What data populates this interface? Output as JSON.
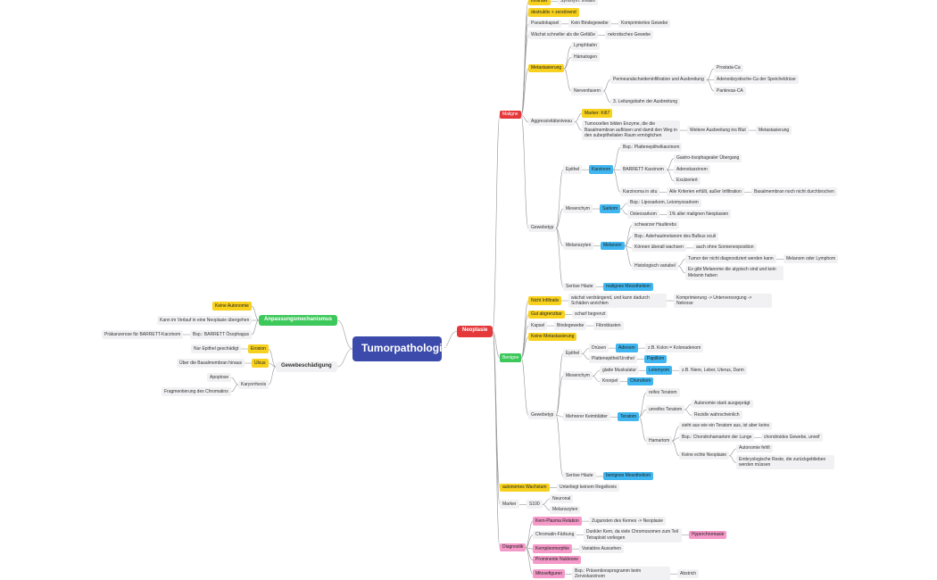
{
  "root": {
    "label": "Tumorpathologie",
    "color": "#3c4bab"
  },
  "left": [
    {
      "label": "Anpassungsmechanismus",
      "color": "#3cc85a",
      "children": [
        {
          "label": "Keine Autonomie",
          "color": "#f7d11e"
        },
        {
          "label": "Kann im Verlauf in eine Neoplasie übergehen"
        },
        {
          "label": "Bsp.: BARRETT Ösophagus",
          "children": [
            {
              "label": "Präkanzerose für BARRETT-Karzinom"
            }
          ]
        }
      ]
    },
    {
      "label": "Gewebeschädigung",
      "children": [
        {
          "label": "Erosion",
          "color": "#f7d11e",
          "children": [
            {
              "label": "Nur Epithel geschädigt"
            }
          ]
        },
        {
          "label": "Ulcus",
          "color": "#f7d11e",
          "children": [
            {
              "label": "Über die Basalmembran hinaus"
            }
          ]
        },
        {
          "label": "Karyorrhexis",
          "children": [
            {
              "label": "Apoptose"
            },
            {
              "label": "Fragmentierung des Chromatins"
            }
          ]
        }
      ]
    }
  ],
  "right": [
    {
      "label": "Neoplasie",
      "color": "#e5383b",
      "children": [
        {
          "label": "Maligne",
          "color": "#e5383b",
          "children": [
            {
              "label": "Infiltrativ",
              "color": "#f7d11e",
              "children": [
                {
                  "label": "Synonym: invasiv"
                }
              ]
            },
            {
              "label": "destruktiv + zerstörend",
              "color": "#f7d11e"
            },
            {
              "label": "Pseudokapsel",
              "children": [
                {
                  "label": "Kein Bindegewebe",
                  "children": [
                    {
                      "label": "Komprimiertes Gewebe"
                    }
                  ]
                }
              ]
            },
            {
              "label": "Wächst schneller als die Gefäße",
              "children": [
                {
                  "label": "nekrotisches Gewebe"
                }
              ]
            },
            {
              "label": "Metastasierung",
              "color": "#f7d11e",
              "children": [
                {
                  "label": "Lymphbahn"
                },
                {
                  "label": "Hämatogen"
                },
                {
                  "label": "Nervenfasern",
                  "children": [
                    {
                      "label": "Perineuralscheideninfiltration und Ausbreitung",
                      "children": [
                        {
                          "label": "Prostata-Ca"
                        },
                        {
                          "label": "Adenoidzystische-Ca der Speicheldrüse"
                        },
                        {
                          "label": "Pankreas-CA"
                        }
                      ]
                    },
                    {
                      "label": "3. Leitungsbahn der Ausbreitung"
                    }
                  ]
                }
              ]
            },
            {
              "label": "Aggressivitätsniveau",
              "children": [
                {
                  "label": "Marker: Ki67",
                  "color": "#f7d11e"
                },
                {
                  "label": "Tumorzellen bilden Enzyme, die die Basalmembran auflösen und damit den Weg in den subepithelialen Raum ermöglichen",
                  "children": [
                    {
                      "label": "Weitere Ausbreitung ins Blut",
                      "children": [
                        {
                          "label": "Metastasierung"
                        }
                      ]
                    }
                  ]
                }
              ]
            },
            {
              "label": "Gewebetyp",
              "children": [
                {
                  "label": "Epithel",
                  "children": [
                    {
                      "label": "Karzinom",
                      "color": "#3fb6ef",
                      "children": [
                        {
                          "label": "Bsp.: Plattenepithelkarzinom"
                        },
                        {
                          "label": "BARRETT-Karzinom",
                          "children": [
                            {
                              "label": "Gastro-ösophagealer Übergang"
                            },
                            {
                              "label": "Adenokarzinom"
                            },
                            {
                              "label": "Exulzeriert"
                            }
                          ]
                        },
                        {
                          "label": "Karzinoma in situ",
                          "children": [
                            {
                              "label": "Alle Kriterien erfüllt, außer Infiltration",
                              "children": [
                                {
                                  "label": "Basalmembran noch nicht durchbrochen"
                                }
                              ]
                            }
                          ]
                        }
                      ]
                    }
                  ]
                },
                {
                  "label": "Mesenchym",
                  "children": [
                    {
                      "label": "Sarkom",
                      "color": "#3fb6ef",
                      "children": [
                        {
                          "label": "Bsp.: Liposarkom, Leiomyosarkom"
                        },
                        {
                          "label": "Osteosarkom",
                          "children": [
                            {
                              "label": "1% aller malignen Neoplasien"
                            }
                          ]
                        }
                      ]
                    }
                  ]
                },
                {
                  "label": "Melanozyten",
                  "children": [
                    {
                      "label": "Melanom",
                      "color": "#3fb6ef",
                      "children": [
                        {
                          "label": "schwarzer Hautkrebs"
                        },
                        {
                          "label": "Bsp.: Aderhautmelanom des Bulbus oculi"
                        },
                        {
                          "label": "Können überall wachsen",
                          "children": [
                            {
                              "label": "auch ohne Sonnenexposition"
                            }
                          ]
                        },
                        {
                          "label": "Histologisch variabel",
                          "children": [
                            {
                              "label": "Tumor der nicht diagnostiziert werden kann",
                              "children": [
                                {
                                  "label": "Melanom oder Lymphom"
                                }
                              ]
                            },
                            {
                              "label": "Es gibt Melanome die atypisch sind und kein Melanin haben"
                            }
                          ]
                        }
                      ]
                    }
                  ]
                },
                {
                  "label": "Seröse Häute",
                  "children": [
                    {
                      "label": "malignes Mesotheliom",
                      "color": "#3fb6ef"
                    }
                  ]
                }
              ]
            }
          ]
        },
        {
          "label": "Benigne",
          "color": "#3cc85a",
          "children": [
            {
              "label": "Nicht Infiltrativ",
              "color": "#f7d11e",
              "children": [
                {
                  "label": "wächst verdrängend, und kann dadurch Schäden anrichten",
                  "children": [
                    {
                      "label": "Komprimierung -> Unterversorgung -> Nekrose"
                    }
                  ]
                }
              ]
            },
            {
              "label": "Gut abgrenzbar",
              "color": "#f7d11e",
              "children": [
                {
                  "label": "scharf begrenzt"
                }
              ]
            },
            {
              "label": "Kapsel",
              "children": [
                {
                  "label": "Bindegewebe",
                  "children": [
                    {
                      "label": "Fibroblasten"
                    }
                  ]
                }
              ]
            },
            {
              "label": "Keine Metastasierung",
              "color": "#f7d11e"
            },
            {
              "label": "Gewebetyp",
              "children": [
                {
                  "label": "Epithel",
                  "children": [
                    {
                      "label": "Drüsen",
                      "children": [
                        {
                          "label": "Adenom",
                          "color": "#3fb6ef",
                          "children": [
                            {
                              "label": "z.B. Kolon = Kolonadenom"
                            }
                          ]
                        }
                      ]
                    },
                    {
                      "label": "Plattenepithel/Urothel",
                      "children": [
                        {
                          "label": "Papillom",
                          "color": "#3fb6ef"
                        }
                      ]
                    }
                  ]
                },
                {
                  "label": "Mesenchym",
                  "children": [
                    {
                      "label": "glatte Muskulatur",
                      "children": [
                        {
                          "label": "Leiomyom",
                          "color": "#3fb6ef",
                          "children": [
                            {
                              "label": "z.B. Niere, Leber, Uterus, Darm"
                            }
                          ]
                        }
                      ]
                    },
                    {
                      "label": "Knorpel",
                      "children": [
                        {
                          "label": "Chondrom",
                          "color": "#3fb6ef"
                        }
                      ]
                    }
                  ]
                },
                {
                  "label": "Mehrerer Keimblätter",
                  "children": [
                    {
                      "label": "Teratom",
                      "color": "#3fb6ef",
                      "children": [
                        {
                          "label": "reifes Teratom"
                        },
                        {
                          "label": "unreifes Teratom",
                          "children": [
                            {
                              "label": "Autonomie stark ausgeprägt"
                            },
                            {
                              "label": "Rezidiv wahrscheinlich"
                            }
                          ]
                        },
                        {
                          "label": "Hamartom",
                          "children": [
                            {
                              "label": "sieht aus wie ein Teratom aus, ist aber keins"
                            },
                            {
                              "label": "Bsp.: Chondrohamartom der Lunge",
                              "children": [
                                {
                                  "label": "chondroides Gewebe, unreif"
                                }
                              ]
                            },
                            {
                              "label": "Keine echte Neoplasie",
                              "children": [
                                {
                                  "label": "Autonomie fehlt"
                                },
                                {
                                  "label": "Embryologische Reste, die zurückgeblieben werden müssen"
                                }
                              ]
                            }
                          ]
                        }
                      ]
                    }
                  ]
                },
                {
                  "label": "Seröse Häute",
                  "children": [
                    {
                      "label": "benignes Mesotheliom",
                      "color": "#3fb6ef"
                    }
                  ]
                }
              ]
            }
          ]
        },
        {
          "label": "autonomes Wachstum",
          "color": "#f7d11e",
          "children": [
            {
              "label": "Unterliegt keinem Regelkreis"
            }
          ]
        },
        {
          "label": "Marker",
          "children": [
            {
              "label": "S100",
              "children": [
                {
                  "label": "Neuronal"
                },
                {
                  "label": "Melanozyten"
                }
              ]
            }
          ]
        },
        {
          "label": "Diagnostik",
          "color": "#f59ac8",
          "children": [
            {
              "label": "Kern-Plasma Relation",
              "color": "#f59ac8",
              "children": [
                {
                  "label": "Zugunsten des Kernes -> Neoplasie"
                }
              ]
            },
            {
              "label": "Chromatin-Färbung",
              "children": [
                {
                  "label": "Dunkler Kern, da viele Chromosomen zum Teil Tetraploid vorliegen",
                  "children": [
                    {
                      "label": "Hyperchromasie",
                      "color": "#f59ac8"
                    }
                  ]
                }
              ]
            },
            {
              "label": "Kernpleomorphie",
              "color": "#f59ac8",
              "children": [
                {
                  "label": "Variables Aussehen"
                }
              ]
            },
            {
              "label": "Prominente Nukleone",
              "color": "#f59ac8"
            },
            {
              "label": "Mitosefiguren",
              "color": "#f59ac8",
              "children": [
                {
                  "label": "Bsp.: Präventionsprogramm beim Zervixkarzinom",
                  "children": [
                    {
                      "label": "Abstrich"
                    }
                  ]
                }
              ]
            }
          ]
        }
      ]
    }
  ]
}
